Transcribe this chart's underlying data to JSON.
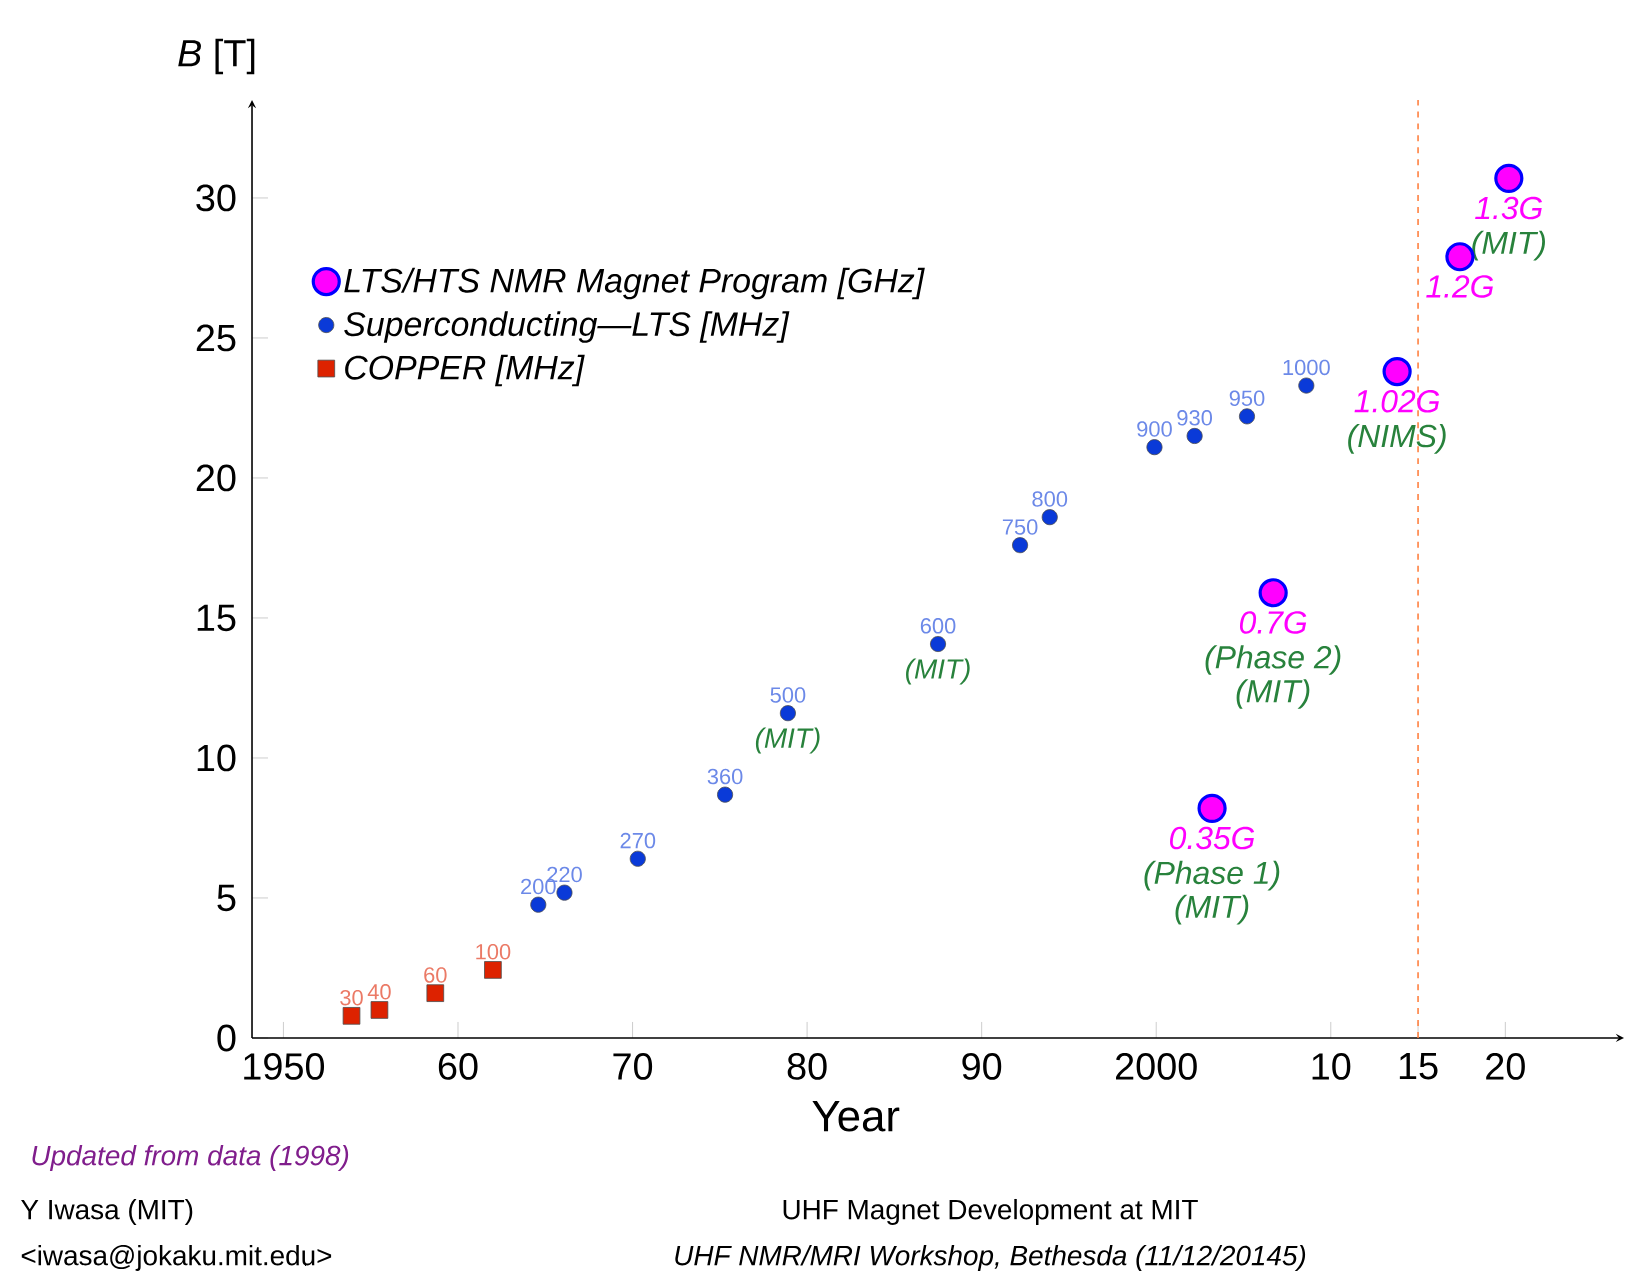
{
  "chart_data": {
    "type": "scatter",
    "ylabel": "*B* [T]",
    "xlabel": "Year",
    "xlim": [
      1948.2,
      2026.8
    ],
    "ylim": [
      0,
      33.5
    ],
    "xticks": [
      {
        "value": 1950,
        "label": "1950"
      },
      {
        "value": 1960,
        "label": "60"
      },
      {
        "value": 1970,
        "label": "70"
      },
      {
        "value": 1980,
        "label": "80"
      },
      {
        "value": 1990,
        "label": "90"
      },
      {
        "value": 2000,
        "label": "2000"
      },
      {
        "value": 2010,
        "label": "10"
      },
      {
        "value": 2015,
        "label": "15"
      },
      {
        "value": 2020,
        "label": "20"
      }
    ],
    "yticks": [
      0,
      5,
      10,
      15,
      20,
      25,
      30
    ],
    "legend": "top left",
    "series": [
      {
        "name": "LTS/HTS NMR Magnet Program  [GHz]",
        "color": "#ff00ff",
        "marker": "circle",
        "x": [
          2003.2,
          2006.7,
          2013.8,
          2017.4,
          2020.2
        ],
        "values": [
          8.2,
          15.9,
          23.8,
          27.9,
          30.7
        ]
      },
      {
        "name": "Superconducting—LTS [MHz]",
        "color": "#0a3ad8",
        "marker": "circle",
        "x": [
          1964.6,
          1966.1,
          1970.3,
          1975.3,
          1978.9,
          1987.5,
          1992.2,
          1993.9,
          1999.9,
          2002.2,
          2005.2,
          2008.6
        ],
        "values": [
          4.76,
          5.19,
          6.4,
          8.69,
          11.6,
          14.07,
          17.6,
          18.6,
          21.1,
          21.5,
          22.2,
          23.3
        ]
      },
      {
        "name": "COPPER [MHz]",
        "color": "#dd2200",
        "marker": "square",
        "x": [
          1953.9,
          1955.5,
          1958.7,
          1962.0
        ],
        "values": [
          0.79,
          1.0,
          1.6,
          2.43
        ]
      }
    ],
    "ref_lines": [
      {
        "axis": "x",
        "value": 2015,
        "color": "#ff8040",
        "line_style": "dashed"
      }
    ],
    "annotations": [
      "Updated from data (1998)",
      "Y Iwasa (MIT)",
      "<iwasa@jokaku.mit.edu>",
      "UHF Magnet Development at MIT",
      "UHF NMR/MRI Workshop, Bethesda (11/12/20145)",
      {
        "text": "30",
        "x": 1953.9,
        "y": 0.79
      },
      {
        "text": "40",
        "x": 1955.5,
        "y": 1.0
      },
      {
        "text": "60",
        "x": 1958.7,
        "y": 1.6
      },
      {
        "text": "100",
        "x": 1962.0,
        "y": 2.43
      },
      {
        "text": "200",
        "x": 1964.6,
        "y": 4.76
      },
      {
        "text": "220",
        "x": 1966.1,
        "y": 5.19
      },
      {
        "text": "270",
        "x": 1970.3,
        "y": 6.4
      },
      {
        "text": "360",
        "x": 1975.3,
        "y": 8.69
      },
      {
        "text": "500",
        "x": 1978.9,
        "y": 11.6
      },
      {
        "text": "(MIT)",
        "x": 1978.9,
        "y": 11.6
      },
      {
        "text": "600",
        "x": 1987.5,
        "y": 14.07
      },
      {
        "text": "(MIT)",
        "x": 1987.5,
        "y": 14.07
      },
      {
        "text": "750",
        "x": 1992.2,
        "y": 17.6
      },
      {
        "text": "800",
        "x": 1993.9,
        "y": 18.6
      },
      {
        "text": "900",
        "x": 1999.9,
        "y": 21.1
      },
      {
        "text": "930",
        "x": 2002.2,
        "y": 21.5
      },
      {
        "text": "950",
        "x": 2005.2,
        "y": 22.2
      },
      {
        "text": "1000",
        "x": 2008.6,
        "y": 23.3
      },
      {
        "text": "0.35G",
        "x": 2003.2,
        "y": 8.2
      },
      {
        "text": "(Phase 1)",
        "x": 2003.2,
        "y": 8.2
      },
      {
        "text": "(MIT)",
        "x": 2003.2,
        "y": 8.2
      },
      {
        "text": "0.7G",
        "x": 2006.7,
        "y": 15.9
      },
      {
        "text": "(Phase 2)",
        "x": 2006.7,
        "y": 15.9
      },
      {
        "text": "(MIT)",
        "x": 2006.7,
        "y": 15.9
      },
      {
        "text": "1.02G",
        "x": 2013.8,
        "y": 23.8
      },
      {
        "text": "(NIMS)",
        "x": 2013.8,
        "y": 23.8
      },
      {
        "text": "1.2G",
        "x": 2017.4,
        "y": 27.9
      },
      {
        "text": "1.3G",
        "x": 2020.2,
        "y": 30.7
      },
      {
        "text": "(MIT)",
        "x": 2020.2,
        "y": 30.7
      }
    ]
  }
}
